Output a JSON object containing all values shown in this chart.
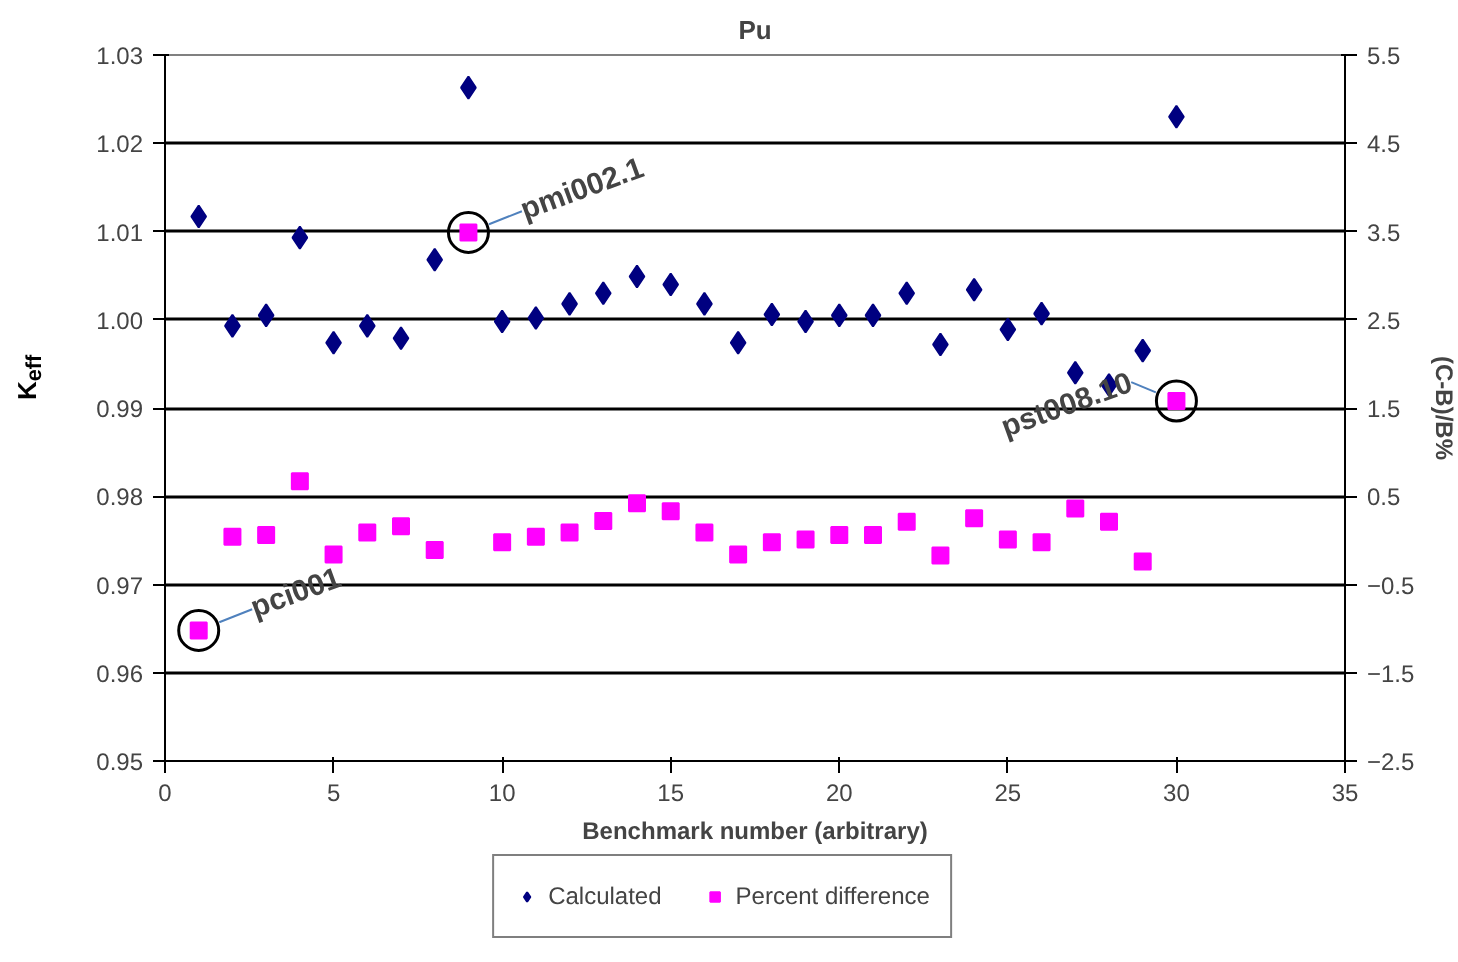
{
  "chart_data": {
    "type": "scatter",
    "title": "Pu",
    "xlabel": "Benchmark number (arbitrary)",
    "ylabel": "K$_{eff}$",
    "y2label": "(C-B)/B%",
    "x": [
      1,
      2,
      3,
      4,
      5,
      6,
      7,
      8,
      9,
      10,
      11,
      12,
      13,
      14,
      15,
      16,
      17,
      18,
      19,
      20,
      21,
      22,
      23,
      24,
      25,
      26,
      27,
      28,
      29,
      30
    ],
    "series": [
      {
        "name": "Calculated",
        "color": "#000080",
        "marker": "diamond",
        "values": [
          1.0117,
          0.9993,
          1.0005,
          1.0093,
          0.9974,
          0.9993,
          0.9979,
          1.0068,
          1.0263,
          0.9998,
          1.0002,
          1.0018,
          1.003,
          1.0049,
          1.004,
          1.0018,
          0.9974,
          1.0006,
          0.9998,
          1.0005,
          1.0005,
          1.003,
          0.9972,
          1.0034,
          0.9989,
          1.0007,
          0.994,
          0.9926,
          0.9965,
          1.023
        ]
      },
      {
        "name": "Percent difference",
        "color": "#ff00ff",
        "marker": "square",
        "axis": "y2",
        "values": [
          -1.02,
          0.04,
          0.06,
          0.67,
          -0.16,
          0.09,
          0.16,
          -0.11,
          3.49,
          -0.02,
          0.04,
          0.09,
          0.22,
          0.42,
          0.33,
          0.09,
          -0.16,
          -0.02,
          0.01,
          0.06,
          0.06,
          0.21,
          -0.17,
          0.25,
          0.01,
          -0.02,
          0.36,
          0.21,
          -0.24,
          1.58
        ]
      }
    ],
    "xlim": [
      0,
      35
    ],
    "xticks": [
      0,
      5,
      10,
      15,
      20,
      25,
      30,
      35
    ],
    "ylim": [
      0.95,
      1.03
    ],
    "yticks": [
      {
        "value": 0.95,
        "label": "0.95"
      },
      {
        "value": 0.96,
        "label": "0.96"
      },
      {
        "value": 0.97,
        "label": "0.97"
      },
      {
        "value": 0.98,
        "label": "0.98"
      },
      {
        "value": 0.99,
        "label": "0.99"
      },
      {
        "value": 1.0,
        "label": "1.00"
      },
      {
        "value": 1.01,
        "label": "1.01"
      },
      {
        "value": 1.02,
        "label": "1.02"
      },
      {
        "value": 1.03,
        "label": "1.03"
      }
    ],
    "y2lim": [
      -2.5,
      5.5
    ],
    "y2ticks": [
      -2.5,
      -1.5,
      -0.5,
      0.5,
      1.5,
      2.5,
      3.5,
      4.5,
      5.5
    ],
    "annotations": [
      {
        "text": "pci001",
        "x": 1,
        "y": 0.9648
      },
      {
        "text": "pmi002.1",
        "x": 9,
        "y": 1.0099
      },
      {
        "text": "pst008.10",
        "x": 30,
        "y": 0.9908
      }
    ],
    "grid": "y",
    "legend": "bottom"
  }
}
